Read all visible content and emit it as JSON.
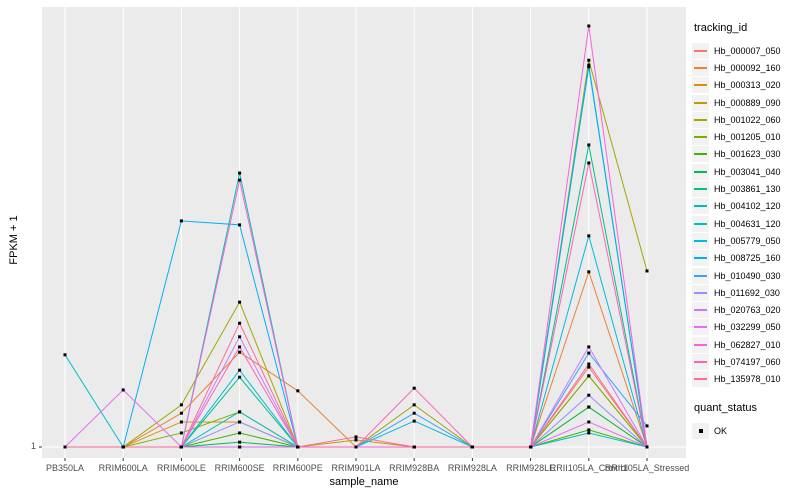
{
  "figure": {
    "xlabel": "sample_name",
    "ylabel": "FPKM + 1"
  },
  "legend": {
    "tracking_title": "tracking_id",
    "quant_title": "quant_status",
    "quant_item_label": "OK"
  },
  "colors": {
    "panel_bg": "#EBEBEB",
    "grid": "#FFFFFF",
    "marker": "#000000",
    "axis_text": "#4D4D4D",
    "legend_key_bg": "#F2F2F2"
  },
  "chart_data": {
    "type": "line",
    "title": "",
    "xlabel": "sample_name",
    "ylabel": "FPKM + 1",
    "yticks": [
      {
        "label": "1",
        "frac": 0
      }
    ],
    "value_encoding": "values are normalized plot heights above the baseline tick '1' (0 = FPKM+1 of 1 at the axis line, 1 = top of panel); only tick '1' is labeled on the y axis",
    "grid": "white major gridlines on gray panel",
    "legend_position": "right",
    "marker": "black square at every sample point (quant_status OK)",
    "categories": [
      "PB350LA",
      "RRIM600LA",
      "RRIM600LE",
      "RRIM600SE",
      "RRIM600PE",
      "RRIM901LA",
      "RRIM928BA",
      "RRIM928LA",
      "RRIM928LE",
      "RRII105LA_Control",
      "RRII105LA_Stressed"
    ],
    "series": [
      {
        "name": "Hb_000007_050",
        "color": "#F8766D",
        "values": [
          0,
          0,
          0,
          0,
          0,
          0,
          0,
          0,
          0,
          0.182,
          0
        ]
      },
      {
        "name": "Hb_000092_160",
        "color": "#EA8331",
        "values": [
          0,
          0,
          0.077,
          0.216,
          0.128,
          0,
          0,
          0,
          0,
          0.399,
          0
        ]
      },
      {
        "name": "Hb_000313_020",
        "color": "#D89000",
        "values": [
          0,
          0,
          0.057,
          0.057,
          0,
          0,
          0,
          0,
          0,
          0.162,
          0
        ]
      },
      {
        "name": "Hb_000889_090",
        "color": "#C09B00",
        "values": [
          0,
          0,
          0,
          0,
          0,
          0.016,
          0,
          0,
          0,
          0.091,
          0
        ]
      },
      {
        "name": "Hb_001022_060",
        "color": "#A3A500",
        "values": [
          0,
          0,
          0.096,
          0.33,
          0,
          0,
          0.096,
          0,
          0,
          0.881,
          0.401
        ]
      },
      {
        "name": "Hb_001205_010",
        "color": "#7CAE00",
        "values": [
          0,
          0,
          0.032,
          0.08,
          0,
          0,
          0,
          0,
          0,
          0.162,
          0
        ]
      },
      {
        "name": "Hb_001623_030",
        "color": "#39B600",
        "values": [
          0,
          0,
          0,
          0.032,
          0,
          0,
          0,
          0,
          0,
          0.039,
          0
        ]
      },
      {
        "name": "Hb_003041_040",
        "color": "#00BB4E",
        "values": [
          0,
          0,
          0,
          0.011,
          0,
          0,
          0,
          0,
          0,
          0.091,
          0
        ]
      },
      {
        "name": "Hb_003861_130",
        "color": "#00C087",
        "values": [
          0,
          0,
          0,
          0.159,
          0,
          0,
          0,
          0,
          0,
          0.688,
          0
        ]
      },
      {
        "name": "Hb_004102_120",
        "color": "#00C0AF",
        "values": [
          0,
          0,
          0,
          0.624,
          0,
          0,
          0,
          0,
          0,
          0.87,
          0
        ]
      },
      {
        "name": "Hb_004631_120",
        "color": "#00BFC4",
        "values": [
          0.21,
          0,
          0,
          0.08,
          0,
          0,
          0,
          0,
          0,
          0.032,
          0
        ]
      },
      {
        "name": "Hb_005779_050",
        "color": "#00BAE0",
        "values": [
          0,
          0,
          0,
          0.175,
          0,
          0,
          0.059,
          0,
          0,
          0.481,
          0
        ]
      },
      {
        "name": "Hb_008725_160",
        "color": "#00B0F6",
        "values": [
          0,
          0,
          0.515,
          0.506,
          0,
          0,
          0,
          0,
          0,
          0.866,
          0
        ]
      },
      {
        "name": "Hb_010490_030",
        "color": "#35A2FF",
        "values": [
          0,
          0,
          0,
          0,
          0,
          0,
          0.077,
          0,
          0,
          0.214,
          0.048
        ]
      },
      {
        "name": "Hb_011692_030",
        "color": "#9590FF",
        "values": [
          0,
          0,
          0,
          0.057,
          0,
          0,
          0,
          0,
          0,
          0.118,
          0
        ]
      },
      {
        "name": "Hb_020763_020",
        "color": "#C77CFF",
        "values": [
          0,
          0,
          0,
          0.251,
          0,
          0,
          0,
          0,
          0,
          0.228,
          0
        ]
      },
      {
        "name": "Hb_032299_050",
        "color": "#E76BF3",
        "values": [
          0,
          0.13,
          0,
          0,
          0,
          0,
          0,
          0,
          0,
          0.057,
          0
        ]
      },
      {
        "name": "Hb_062827_010",
        "color": "#FA62DB",
        "values": [
          0,
          0,
          0,
          0.608,
          0,
          0,
          0,
          0,
          0,
          0.959,
          0
        ]
      },
      {
        "name": "Hb_074197_060",
        "color": "#FF62BC",
        "values": [
          0,
          0,
          0,
          0.228,
          0,
          0,
          0.134,
          0,
          0,
          0.647,
          0
        ]
      },
      {
        "name": "Hb_135978_010",
        "color": "#FF6A98",
        "values": [
          0,
          0,
          0,
          0.282,
          0,
          0.023,
          0,
          0,
          0,
          0.189,
          0
        ]
      }
    ]
  }
}
